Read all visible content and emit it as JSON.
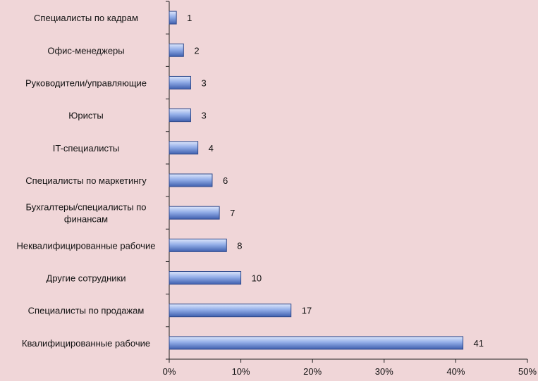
{
  "chart_data": {
    "type": "bar",
    "orientation": "horizontal",
    "categories": [
      "Специалисты по кадрам",
      "Офис-менеджеры",
      "Руководители/управляющие",
      "Юристы",
      "IT-специалисты",
      "Специалисты по маркетингу",
      "Бухгалтеры/специалисты по финансам",
      "Неквалифицированные рабочие",
      "Другие сотрудники",
      "Специалисты по продажам",
      "Квалифицированные рабочие"
    ],
    "category_lines": [
      [
        "Специалисты по кадрам"
      ],
      [
        "Офис-менеджеры"
      ],
      [
        "Руководители/управляющие"
      ],
      [
        "Юристы"
      ],
      [
        "IT-специалисты"
      ],
      [
        "Специалисты по маркетингу"
      ],
      [
        "Бухгалтеры/специалисты по",
        "финансам"
      ],
      [
        "Неквалифицированные рабочие"
      ],
      [
        "Другие сотрудники"
      ],
      [
        "Специалисты по продажам"
      ],
      [
        "Квалифицированные рабочие"
      ]
    ],
    "values": [
      1,
      2,
      3,
      3,
      4,
      6,
      7,
      8,
      10,
      17,
      41
    ],
    "data_labels": [
      "1",
      "2",
      "3",
      "3",
      "4",
      "6",
      "7",
      "8",
      "10",
      "17",
      "41"
    ],
    "xlim": [
      0,
      50
    ],
    "x_ticks": [
      0,
      10,
      20,
      30,
      40,
      50
    ],
    "x_tick_labels": [
      "0%",
      "10%",
      "20%",
      "30%",
      "40%",
      "50%"
    ],
    "title": "",
    "xlabel": "",
    "ylabel": "",
    "grid": false,
    "legend": "none",
    "colors": {
      "background": "#f0d6d8",
      "bar_light": "#dfe7fb",
      "bar_mid": "#93aee8",
      "bar_dark": "#3f5fae",
      "bar_edge": "#2f4a8c",
      "axis": "#222222",
      "text": "#111111"
    }
  }
}
